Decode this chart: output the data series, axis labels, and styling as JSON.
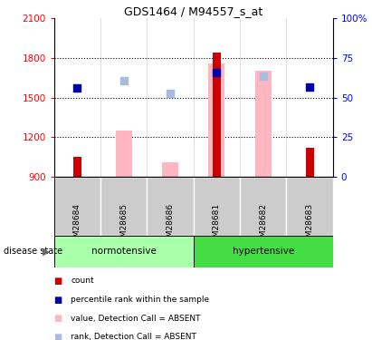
{
  "title": "GDS1464 / M94557_s_at",
  "samples": [
    "GSM28684",
    "GSM28685",
    "GSM28686",
    "GSM28681",
    "GSM28682",
    "GSM28683"
  ],
  "groups": [
    "normotensive",
    "normotensive",
    "normotensive",
    "hypertensive",
    "hypertensive",
    "hypertensive"
  ],
  "bar_bottom": 900,
  "ylim": [
    900,
    2100
  ],
  "yticks": [
    900,
    1200,
    1500,
    1800,
    2100
  ],
  "right_yticks": [
    0,
    25,
    50,
    75,
    100
  ],
  "right_yticklabels": [
    "0",
    "25",
    "50",
    "75",
    "100%"
  ],
  "count_bars": {
    "GSM28684": 1050,
    "GSM28685": null,
    "GSM28686": null,
    "GSM28681": 1840,
    "GSM28682": null,
    "GSM28683": 1120
  },
  "absent_value_bars": {
    "GSM28684": null,
    "GSM28685": 1250,
    "GSM28686": 1010,
    "GSM28681": 1760,
    "GSM28682": 1700,
    "GSM28683": null
  },
  "percentile_rank_dots": {
    "GSM28684": 1570,
    "GSM28685": null,
    "GSM28686": null,
    "GSM28681": 1690,
    "GSM28682": null,
    "GSM28683": 1580
  },
  "absent_rank_dots": {
    "GSM28684": null,
    "GSM28685": 1630,
    "GSM28686": 1530,
    "GSM28681": null,
    "GSM28682": 1660,
    "GSM28683": null
  },
  "count_color": "#CC0000",
  "absent_value_color": "#FFB6C1",
  "percentile_color": "#0000AA",
  "absent_rank_color": "#AABBDD",
  "normotensive_color": "#AAFFAA",
  "hypertensive_color": "#44DD44",
  "sample_bg_color": "#CCCCCC",
  "legend_items": [
    {
      "label": "count",
      "color": "#CC0000"
    },
    {
      "label": "percentile rank within the sample",
      "color": "#0000AA"
    },
    {
      "label": "value, Detection Call = ABSENT",
      "color": "#FFB6C1"
    },
    {
      "label": "rank, Detection Call = ABSENT",
      "color": "#AABBDD"
    }
  ]
}
